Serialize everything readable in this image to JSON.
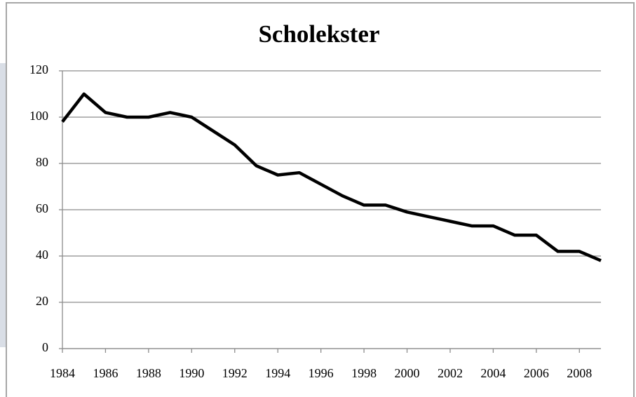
{
  "chart_data": {
    "type": "line",
    "title": "Scholekster",
    "x": [
      1984,
      1985,
      1986,
      1987,
      1988,
      1989,
      1990,
      1991,
      1992,
      1993,
      1994,
      1995,
      1996,
      1997,
      1998,
      1999,
      2000,
      2001,
      2002,
      2003,
      2004,
      2005,
      2006,
      2007,
      2008,
      2009
    ],
    "series": [
      {
        "color": "#000000",
        "values": [
          98,
          110,
          102,
          100,
          100,
          102,
          100,
          94,
          88,
          79,
          75,
          76,
          71,
          66,
          62,
          62,
          59,
          57,
          55,
          53,
          53,
          49,
          49,
          42,
          42,
          38
        ]
      }
    ],
    "xlim": [
      1984,
      2009
    ],
    "xticks": [
      1984,
      1986,
      1988,
      1990,
      1992,
      1994,
      1996,
      1998,
      2000,
      2002,
      2004,
      2006,
      2008
    ],
    "ylim": [
      0,
      120
    ],
    "yticks": [
      0,
      20,
      40,
      60,
      80,
      100,
      120
    ],
    "grid": true
  }
}
